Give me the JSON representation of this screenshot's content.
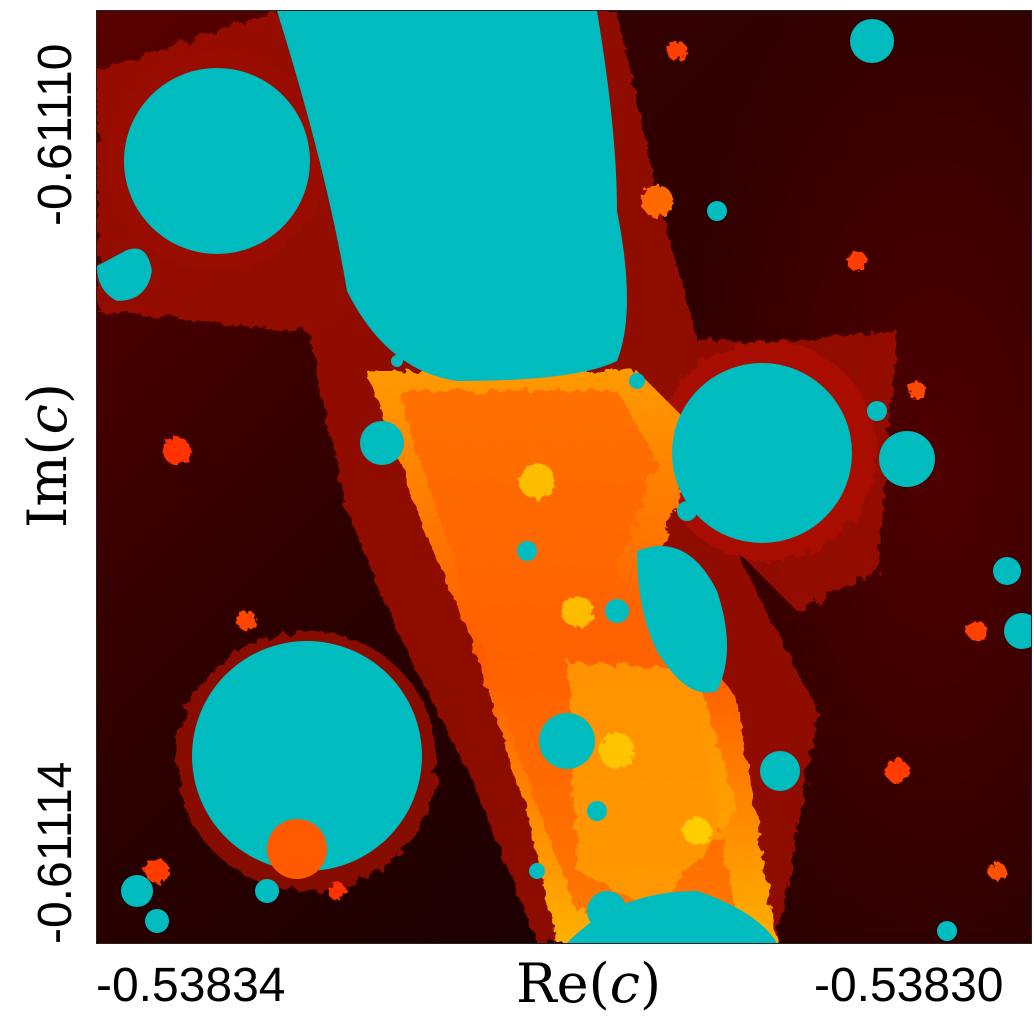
{
  "axes": {
    "x_label_prefix": "Re(",
    "x_label_var": "c",
    "x_label_suffix": ")",
    "y_label_prefix": "Im(",
    "y_label_var": "c",
    "y_label_suffix": ")",
    "x_tick_left": "-0.53834",
    "x_tick_right": "-0.53830",
    "y_tick_top": "-0.61110",
    "y_tick_bottom": "-0.61114"
  },
  "colors": {
    "interior": "#00bcbf",
    "exterior_dark": "#1a0000",
    "exterior_mid": "#6b0000",
    "boundary_red": "#e11800",
    "boundary_orange": "#ff6a00",
    "boundary_yellow": "#ffd200"
  }
}
